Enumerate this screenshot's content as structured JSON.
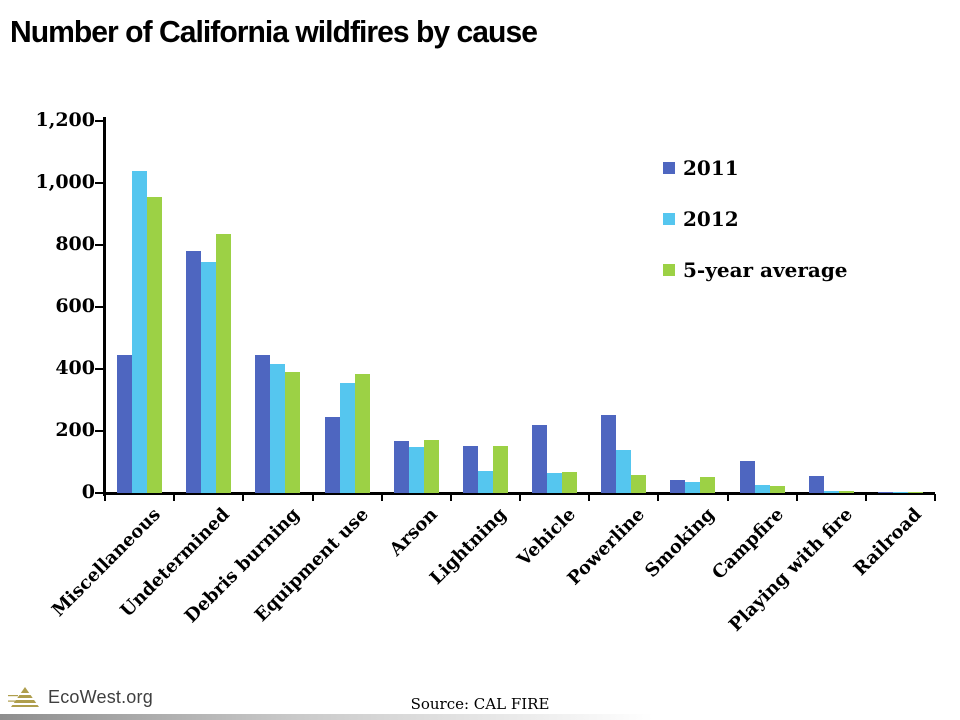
{
  "header": {
    "title": "Number of California wildfires by cause"
  },
  "chart_data": {
    "type": "bar",
    "title": "Number of California wildfires by cause",
    "xlabel": "",
    "ylabel": "",
    "categories": [
      "Miscellaneous",
      "Undetermined",
      "Debris burning",
      "Equipment use",
      "Arson",
      "Lightning",
      "Vehicle",
      "Powerline",
      "Smoking",
      "Campfire",
      "Playing with fire",
      "Railroad"
    ],
    "series": [
      {
        "name": "2011",
        "color": "#4E66C0",
        "values": [
          445,
          780,
          445,
          245,
          168,
          152,
          220,
          252,
          42,
          104,
          55,
          4
        ]
      },
      {
        "name": "2012",
        "color": "#55C6EF",
        "values": [
          1040,
          745,
          415,
          355,
          148,
          72,
          65,
          138,
          35,
          25,
          7,
          2
        ]
      },
      {
        "name": "5-year average",
        "color": "#9CD145",
        "values": [
          955,
          835,
          390,
          385,
          172,
          150,
          68,
          58,
          52,
          24,
          5,
          2
        ]
      }
    ],
    "ylim": [
      0,
      1200
    ],
    "yticks": [
      "0",
      "200",
      "400",
      "600",
      "800",
      "1,000",
      "1,200"
    ],
    "grid": false,
    "legend_position": "upper-right"
  },
  "footer": {
    "logo_text": "EcoWest.org",
    "source": "Source: CAL FIRE"
  }
}
